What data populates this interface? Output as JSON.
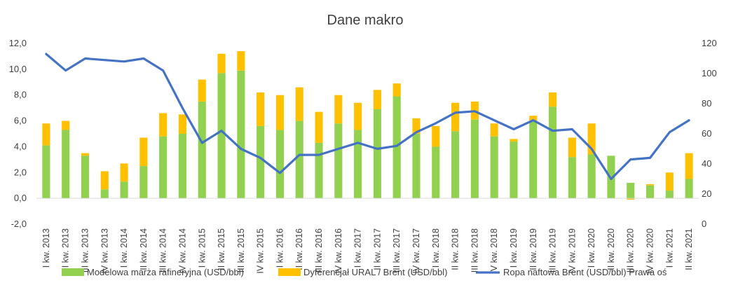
{
  "chart_data": {
    "type": "bar",
    "title": "Dane makro",
    "categories": [
      "I kw. 2013",
      "II kw. 2013",
      "III kw. 2013",
      "IV kw. 2013",
      "I kw. 2014",
      "II kw. 2014",
      "III kw. 2014",
      "IV kw. 2014",
      "I kw. 2015",
      "II kw. 2015",
      "III kw. 2015",
      "IV kw. 2015",
      "I kw. 2016",
      "II kw. 2016",
      "III kw. 2016",
      "IV kw. 2016",
      "I kw. 2017",
      "II kw. 2017",
      "III kw. 2017",
      "IV kw. 2017",
      "I kw. 2018",
      "II kw. 2018",
      "III kw. 2018",
      "IV kw. 2018",
      "I kw. 2019",
      "II kw. 2019",
      "III kw. 2019",
      "IV kw. 2019",
      "I kw. 2020",
      "II kw. 2020",
      "III kw. 2020",
      "IV kw. 2020",
      "I kw. 2021",
      "II kw. 2021"
    ],
    "series": [
      {
        "name": "Modelowa marża rafineryjna (USD/bbl)",
        "kind": "stacked-bar",
        "axis": "left",
        "color": "#92D050",
        "values": [
          4.1,
          5.3,
          3.3,
          0.7,
          1.3,
          2.5,
          4.8,
          5.0,
          7.5,
          9.7,
          9.9,
          5.6,
          5.3,
          6.0,
          4.3,
          5.8,
          5.3,
          6.9,
          7.9,
          5.0,
          4.0,
          5.2,
          6.1,
          4.8,
          4.4,
          6.0,
          7.1,
          3.2,
          3.4,
          3.3,
          1.2,
          1.0,
          0.6,
          1.5
        ]
      },
      {
        "name": "Dyferencjał URAL / Brent (USD/bbl)",
        "kind": "stacked-bar",
        "axis": "left",
        "color": "#FFC000",
        "values": [
          1.7,
          0.7,
          0.2,
          1.4,
          1.4,
          2.2,
          1.8,
          1.5,
          1.7,
          1.5,
          1.5,
          2.6,
          2.7,
          2.6,
          2.4,
          2.2,
          2.1,
          1.5,
          1.0,
          1.2,
          1.6,
          2.2,
          1.4,
          1.0,
          0.2,
          0.4,
          1.1,
          1.5,
          2.4,
          0.0,
          -0.1,
          0.1,
          1.4,
          2.0
        ]
      },
      {
        "name": "Ropa naftowa Brent (USD/bbl) Prawa oś",
        "kind": "line",
        "axis": "right",
        "color": "#4472C4",
        "values": [
          113,
          102,
          110,
          109,
          108,
          110,
          102,
          77,
          54,
          62,
          50,
          44,
          34,
          46,
          46,
          50,
          54,
          50,
          52,
          61,
          67,
          74,
          75,
          69,
          63,
          69,
          62,
          63,
          50,
          30,
          43,
          44,
          61,
          69
        ]
      }
    ],
    "y_left": {
      "min": -2,
      "max": 12,
      "ticks": [
        "-2,0",
        "0,0",
        "2,0",
        "4,0",
        "6,0",
        "8,0",
        "10,0",
        "12,0"
      ]
    },
    "y_right": {
      "min": 0,
      "max": 120,
      "ticks": [
        "0",
        "20",
        "40",
        "60",
        "80",
        "100",
        "120"
      ]
    },
    "grid": false,
    "legend_position": "bottom"
  }
}
